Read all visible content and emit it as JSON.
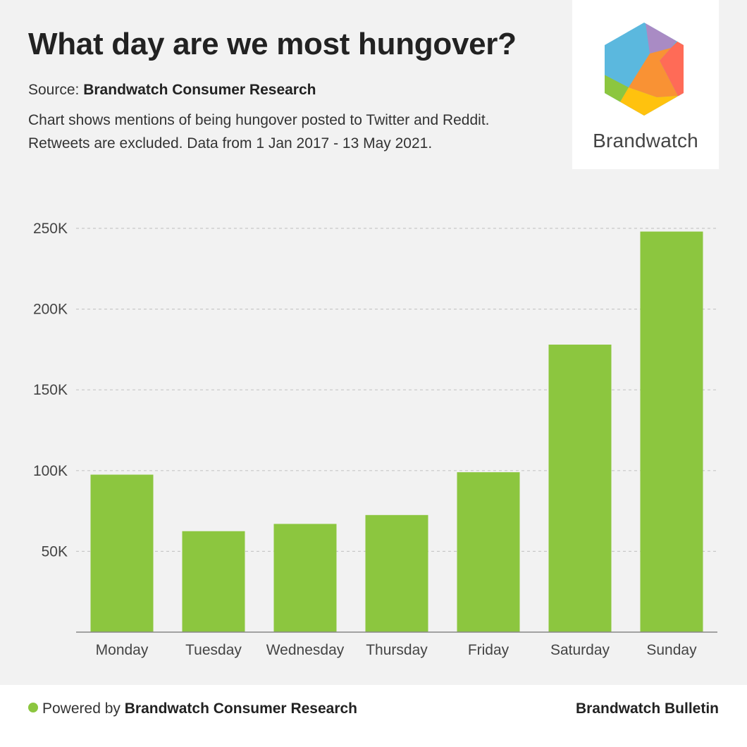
{
  "header": {
    "title": "What day are we most hungover?",
    "source_prefix": "Source: ",
    "source_name": "Brandwatch Consumer Research",
    "description_line1": "Chart shows mentions of being hungover posted to Twitter and Reddit.",
    "description_line2": "Retweets are excluded. Data from 1 Jan 2017 - 13 May 2021."
  },
  "logo": {
    "text": "Brandwatch",
    "icon": "brandwatch-hexagon-logo"
  },
  "footer": {
    "powered_prefix": "Powered by ",
    "powered_name": "Brandwatch Consumer Research",
    "right": "Brandwatch Bulletin"
  },
  "colors": {
    "bar": "#8cc63f",
    "background": "#f2f2f2",
    "grid": "#c8c8c8",
    "axis": "#888888",
    "accent": "#8cc63f"
  },
  "chart_data": {
    "type": "bar",
    "categories": [
      "Monday",
      "Tuesday",
      "Wednesday",
      "Thursday",
      "Friday",
      "Saturday",
      "Sunday"
    ],
    "values": [
      97500,
      62500,
      67000,
      72500,
      99000,
      178000,
      248000
    ],
    "ylim": [
      0,
      250000
    ],
    "yticks": [
      50000,
      100000,
      150000,
      200000,
      250000
    ],
    "ytick_labels": [
      "50K",
      "100K",
      "150K",
      "200K",
      "250K"
    ],
    "grid": true,
    "legend": "none"
  }
}
